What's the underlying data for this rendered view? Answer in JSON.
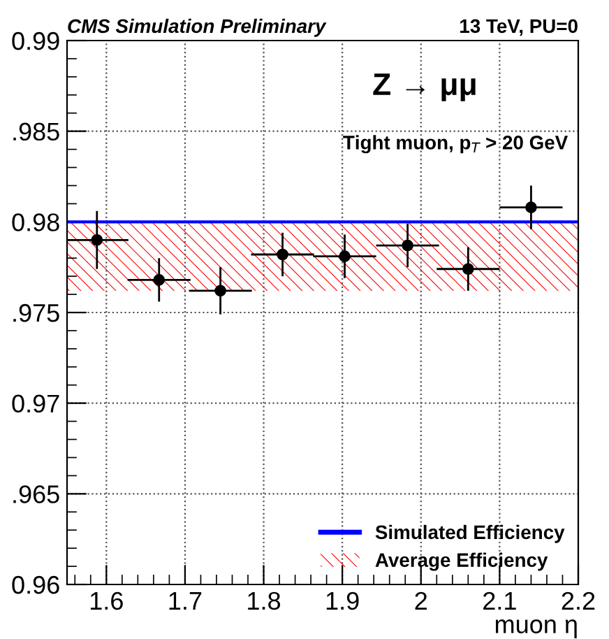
{
  "chart_data": {
    "type": "scatter",
    "title": "CMS Simulation Preliminary",
    "subtitle": "13 TeV, PU=0",
    "xlabel": "muon η",
    "x": [
      1.588,
      1.667,
      1.745,
      1.824,
      1.903,
      1.983,
      2.06,
      2.14
    ],
    "values": [
      0.979,
      0.9768,
      0.9762,
      0.9782,
      0.9781,
      0.9787,
      0.9774,
      0.9808
    ],
    "errors": [
      0.0016,
      0.0012,
      0.0013,
      0.0012,
      0.0012,
      0.0012,
      0.0012,
      0.0012
    ],
    "xerrors": [
      0.04,
      0.04,
      0.04,
      0.04,
      0.04,
      0.04,
      0.04,
      0.04
    ],
    "color": "#000000",
    "marker": "circle",
    "xlim": [
      1.55,
      2.2
    ],
    "ylim": [
      0.96,
      0.99
    ],
    "xticks": [
      1.6,
      1.7,
      1.8,
      1.9,
      2,
      2.1,
      2.2
    ],
    "yticks": [
      {
        "value": 0.96,
        "label": "0.96"
      },
      {
        "value": 0.965,
        "label": ".965"
      },
      {
        "value": 0.97,
        "label": "0.97"
      },
      {
        "value": 0.975,
        "label": ".975"
      },
      {
        "value": 0.98,
        "label": "0.98"
      },
      {
        "value": 0.985,
        "label": ".985"
      },
      {
        "value": 0.99,
        "label": "0.99"
      }
    ],
    "ref_lines": [
      {
        "axis": "y",
        "value": 0.98,
        "label": "Simulated Efficiency",
        "color": "#0000ff"
      }
    ],
    "bands": [
      {
        "axis": "y",
        "from": 0.9762,
        "to": 0.98,
        "label": "Average Efficiency",
        "color": "#ff0000"
      }
    ],
    "annotations": [
      "Z → μμ",
      "Tight muon, p$_{T}$ > 20 GeV"
    ],
    "grid": true,
    "legend": "bottom right"
  }
}
